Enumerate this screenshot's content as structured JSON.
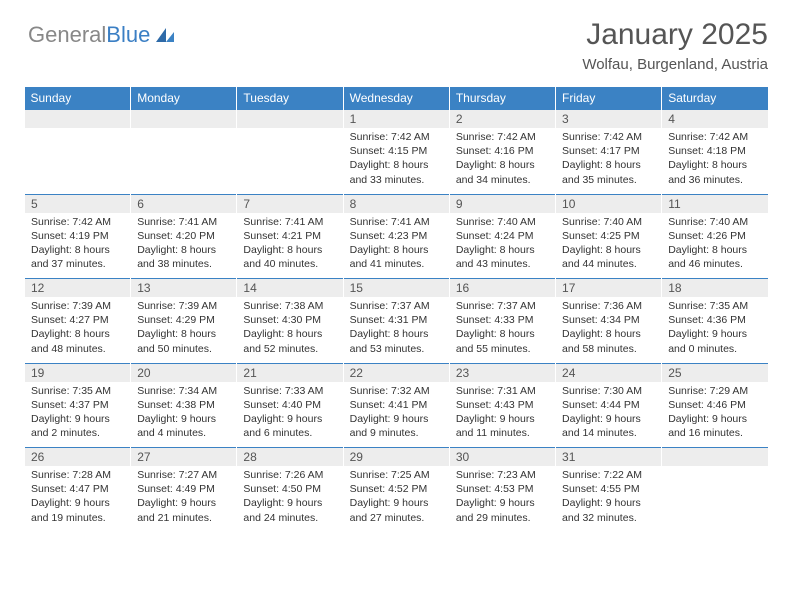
{
  "logo": {
    "text1": "General",
    "text2": "Blue"
  },
  "title": "January 2025",
  "subtitle": "Wolfau, Burgenland, Austria",
  "colors": {
    "header_bg": "#3b82c4",
    "header_text": "#ffffff",
    "daynum_bg": "#ededed",
    "border": "#3b82c4",
    "logo_gray": "#888888",
    "logo_blue": "#3b7fc4",
    "text": "#333333"
  },
  "weekdays": [
    "Sunday",
    "Monday",
    "Tuesday",
    "Wednesday",
    "Thursday",
    "Friday",
    "Saturday"
  ],
  "weeks": [
    {
      "nums": [
        "",
        "",
        "",
        "1",
        "2",
        "3",
        "4"
      ],
      "cells": [
        null,
        null,
        null,
        {
          "sunrise": "7:42 AM",
          "sunset": "4:15 PM",
          "dl1": "Daylight: 8 hours",
          "dl2": "and 33 minutes."
        },
        {
          "sunrise": "7:42 AM",
          "sunset": "4:16 PM",
          "dl1": "Daylight: 8 hours",
          "dl2": "and 34 minutes."
        },
        {
          "sunrise": "7:42 AM",
          "sunset": "4:17 PM",
          "dl1": "Daylight: 8 hours",
          "dl2": "and 35 minutes."
        },
        {
          "sunrise": "7:42 AM",
          "sunset": "4:18 PM",
          "dl1": "Daylight: 8 hours",
          "dl2": "and 36 minutes."
        }
      ]
    },
    {
      "nums": [
        "5",
        "6",
        "7",
        "8",
        "9",
        "10",
        "11"
      ],
      "cells": [
        {
          "sunrise": "7:42 AM",
          "sunset": "4:19 PM",
          "dl1": "Daylight: 8 hours",
          "dl2": "and 37 minutes."
        },
        {
          "sunrise": "7:41 AM",
          "sunset": "4:20 PM",
          "dl1": "Daylight: 8 hours",
          "dl2": "and 38 minutes."
        },
        {
          "sunrise": "7:41 AM",
          "sunset": "4:21 PM",
          "dl1": "Daylight: 8 hours",
          "dl2": "and 40 minutes."
        },
        {
          "sunrise": "7:41 AM",
          "sunset": "4:23 PM",
          "dl1": "Daylight: 8 hours",
          "dl2": "and 41 minutes."
        },
        {
          "sunrise": "7:40 AM",
          "sunset": "4:24 PM",
          "dl1": "Daylight: 8 hours",
          "dl2": "and 43 minutes."
        },
        {
          "sunrise": "7:40 AM",
          "sunset": "4:25 PM",
          "dl1": "Daylight: 8 hours",
          "dl2": "and 44 minutes."
        },
        {
          "sunrise": "7:40 AM",
          "sunset": "4:26 PM",
          "dl1": "Daylight: 8 hours",
          "dl2": "and 46 minutes."
        }
      ]
    },
    {
      "nums": [
        "12",
        "13",
        "14",
        "15",
        "16",
        "17",
        "18"
      ],
      "cells": [
        {
          "sunrise": "7:39 AM",
          "sunset": "4:27 PM",
          "dl1": "Daylight: 8 hours",
          "dl2": "and 48 minutes."
        },
        {
          "sunrise": "7:39 AM",
          "sunset": "4:29 PM",
          "dl1": "Daylight: 8 hours",
          "dl2": "and 50 minutes."
        },
        {
          "sunrise": "7:38 AM",
          "sunset": "4:30 PM",
          "dl1": "Daylight: 8 hours",
          "dl2": "and 52 minutes."
        },
        {
          "sunrise": "7:37 AM",
          "sunset": "4:31 PM",
          "dl1": "Daylight: 8 hours",
          "dl2": "and 53 minutes."
        },
        {
          "sunrise": "7:37 AM",
          "sunset": "4:33 PM",
          "dl1": "Daylight: 8 hours",
          "dl2": "and 55 minutes."
        },
        {
          "sunrise": "7:36 AM",
          "sunset": "4:34 PM",
          "dl1": "Daylight: 8 hours",
          "dl2": "and 58 minutes."
        },
        {
          "sunrise": "7:35 AM",
          "sunset": "4:36 PM",
          "dl1": "Daylight: 9 hours",
          "dl2": "and 0 minutes."
        }
      ]
    },
    {
      "nums": [
        "19",
        "20",
        "21",
        "22",
        "23",
        "24",
        "25"
      ],
      "cells": [
        {
          "sunrise": "7:35 AM",
          "sunset": "4:37 PM",
          "dl1": "Daylight: 9 hours",
          "dl2": "and 2 minutes."
        },
        {
          "sunrise": "7:34 AM",
          "sunset": "4:38 PM",
          "dl1": "Daylight: 9 hours",
          "dl2": "and 4 minutes."
        },
        {
          "sunrise": "7:33 AM",
          "sunset": "4:40 PM",
          "dl1": "Daylight: 9 hours",
          "dl2": "and 6 minutes."
        },
        {
          "sunrise": "7:32 AM",
          "sunset": "4:41 PM",
          "dl1": "Daylight: 9 hours",
          "dl2": "and 9 minutes."
        },
        {
          "sunrise": "7:31 AM",
          "sunset": "4:43 PM",
          "dl1": "Daylight: 9 hours",
          "dl2": "and 11 minutes."
        },
        {
          "sunrise": "7:30 AM",
          "sunset": "4:44 PM",
          "dl1": "Daylight: 9 hours",
          "dl2": "and 14 minutes."
        },
        {
          "sunrise": "7:29 AM",
          "sunset": "4:46 PM",
          "dl1": "Daylight: 9 hours",
          "dl2": "and 16 minutes."
        }
      ]
    },
    {
      "nums": [
        "26",
        "27",
        "28",
        "29",
        "30",
        "31",
        ""
      ],
      "cells": [
        {
          "sunrise": "7:28 AM",
          "sunset": "4:47 PM",
          "dl1": "Daylight: 9 hours",
          "dl2": "and 19 minutes."
        },
        {
          "sunrise": "7:27 AM",
          "sunset": "4:49 PM",
          "dl1": "Daylight: 9 hours",
          "dl2": "and 21 minutes."
        },
        {
          "sunrise": "7:26 AM",
          "sunset": "4:50 PM",
          "dl1": "Daylight: 9 hours",
          "dl2": "and 24 minutes."
        },
        {
          "sunrise": "7:25 AM",
          "sunset": "4:52 PM",
          "dl1": "Daylight: 9 hours",
          "dl2": "and 27 minutes."
        },
        {
          "sunrise": "7:23 AM",
          "sunset": "4:53 PM",
          "dl1": "Daylight: 9 hours",
          "dl2": "and 29 minutes."
        },
        {
          "sunrise": "7:22 AM",
          "sunset": "4:55 PM",
          "dl1": "Daylight: 9 hours",
          "dl2": "and 32 minutes."
        },
        null
      ]
    }
  ]
}
